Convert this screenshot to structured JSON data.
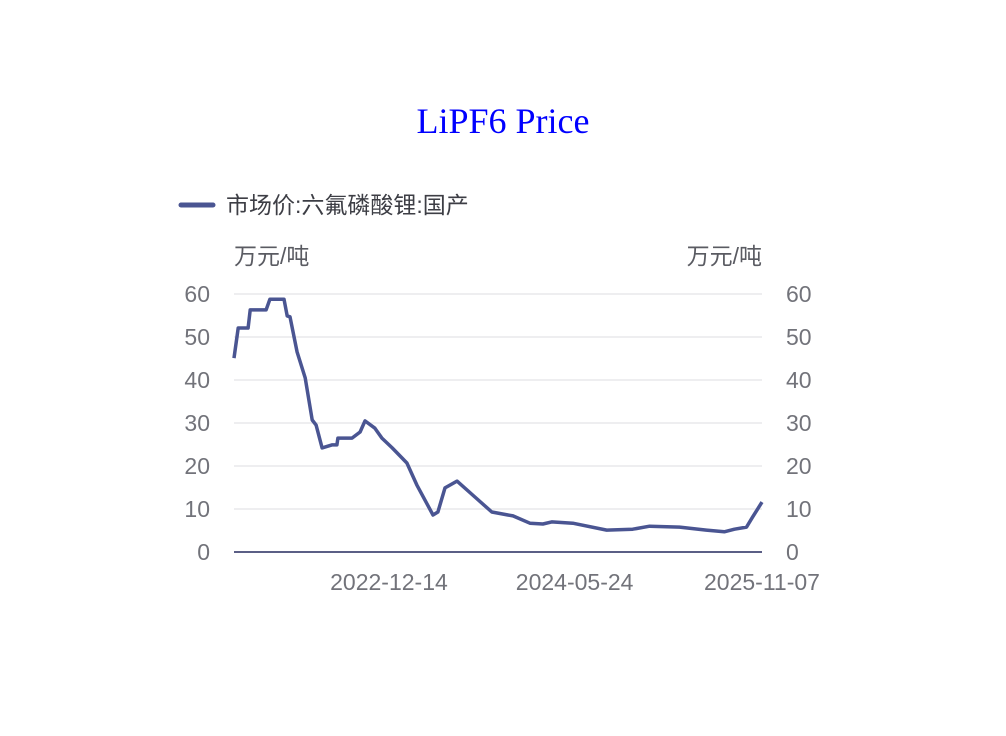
{
  "chart_data": {
    "type": "line",
    "title": "LiPF6 Price",
    "ylabel_left": "万元/吨",
    "ylabel_right": "万元/吨",
    "ylim": [
      0,
      60
    ],
    "yticks": [
      0,
      10,
      20,
      30,
      40,
      50,
      60
    ],
    "xlim": [
      "2021-09-30",
      "2025-11-07"
    ],
    "xticks": [
      "2022-12-14",
      "2024-05-24",
      "2025-11-07"
    ],
    "grid": true,
    "legend_position": "top-left",
    "line_color": "#4a5592",
    "series": [
      {
        "name": "市场价:六氟磷酸锂:国产",
        "points": [
          [
            "2021-09-30",
            45.1
          ],
          [
            "2021-10-12",
            52.1
          ],
          [
            "2021-11-09",
            52.1
          ],
          [
            "2021-11-15",
            56.3
          ],
          [
            "2021-12-30",
            56.3
          ],
          [
            "2022-01-10",
            58.8
          ],
          [
            "2022-02-19",
            58.8
          ],
          [
            "2022-02-28",
            54.9
          ],
          [
            "2022-03-08",
            54.7
          ],
          [
            "2022-03-28",
            46.5
          ],
          [
            "2022-04-20",
            40.5
          ],
          [
            "2022-05-10",
            30.7
          ],
          [
            "2022-05-21",
            29.5
          ],
          [
            "2022-06-07",
            24.2
          ],
          [
            "2022-07-05",
            24.9
          ],
          [
            "2022-07-19",
            24.9
          ],
          [
            "2022-07-22",
            26.5
          ],
          [
            "2022-08-31",
            26.5
          ],
          [
            "2022-09-23",
            27.9
          ],
          [
            "2022-10-07",
            30.5
          ],
          [
            "2022-11-04",
            28.8
          ],
          [
            "2022-11-24",
            26.5
          ],
          [
            "2022-12-23",
            24.2
          ],
          [
            "2023-02-03",
            20.7
          ],
          [
            "2023-03-03",
            15.6
          ],
          [
            "2023-04-18",
            8.6
          ],
          [
            "2023-05-02",
            9.3
          ],
          [
            "2023-05-22",
            14.9
          ],
          [
            "2023-06-25",
            16.5
          ],
          [
            "2023-08-15",
            12.8
          ],
          [
            "2023-10-02",
            9.3
          ],
          [
            "2023-12-01",
            8.4
          ],
          [
            "2024-01-18",
            6.7
          ],
          [
            "2024-02-24",
            6.5
          ],
          [
            "2024-03-20",
            7.0
          ],
          [
            "2024-05-19",
            6.7
          ],
          [
            "2024-08-23",
            5.1
          ],
          [
            "2024-11-05",
            5.3
          ],
          [
            "2024-12-23",
            6.0
          ],
          [
            "2025-03-18",
            5.8
          ],
          [
            "2025-06-02",
            5.1
          ],
          [
            "2025-07-23",
            4.7
          ],
          [
            "2025-08-21",
            5.3
          ],
          [
            "2025-09-24",
            5.8
          ],
          [
            "2025-10-11",
            8.1
          ],
          [
            "2025-11-07",
            11.6
          ]
        ]
      }
    ]
  }
}
